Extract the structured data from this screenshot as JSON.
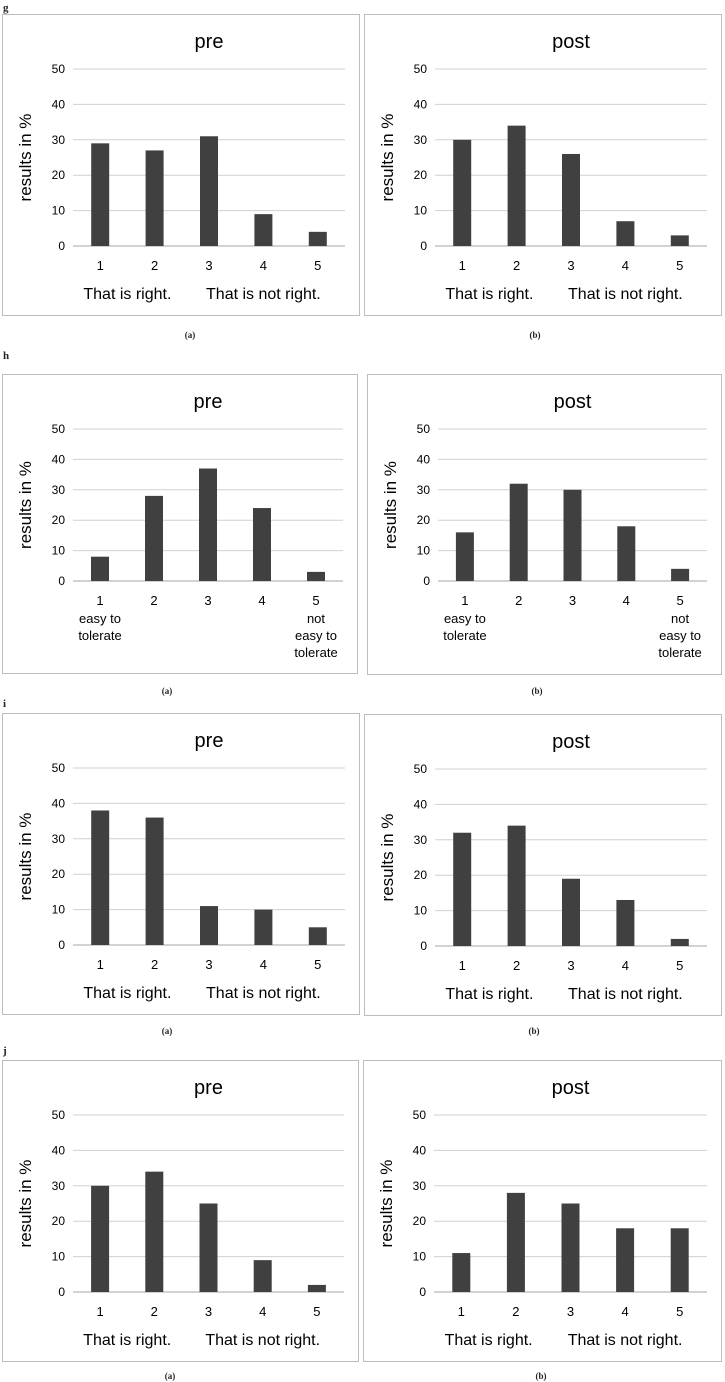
{
  "groups": [
    {
      "id": "g",
      "label": "g"
    },
    {
      "id": "h",
      "label": "h"
    },
    {
      "id": "i",
      "label": "i"
    },
    {
      "id": "j",
      "label": "j"
    }
  ],
  "sublabels": {
    "a": "(a)",
    "b": "(b)"
  },
  "chart_data": [
    {
      "group": "g",
      "panel": "a",
      "type": "bar",
      "title": "pre",
      "ylabel": "results in %",
      "ylim": [
        0,
        50
      ],
      "yticks": [
        0,
        10,
        20,
        30,
        40,
        50
      ],
      "categories": [
        "1",
        "2",
        "3",
        "4",
        "5"
      ],
      "values": [
        29,
        27,
        31,
        9,
        4
      ],
      "sublabels": [
        "That is right.",
        "That is not right."
      ],
      "grid": true
    },
    {
      "group": "g",
      "panel": "b",
      "type": "bar",
      "title": "post",
      "ylabel": "results in %",
      "ylim": [
        0,
        50
      ],
      "yticks": [
        0,
        10,
        20,
        30,
        40,
        50
      ],
      "categories": [
        "1",
        "2",
        "3",
        "4",
        "5"
      ],
      "values": [
        30,
        34,
        26,
        7,
        3
      ],
      "sublabels": [
        "That is right.",
        "That is not right."
      ],
      "grid": true
    },
    {
      "group": "h",
      "panel": "a",
      "type": "bar",
      "title": "pre",
      "ylabel": "results in %",
      "ylim": [
        0,
        50
      ],
      "yticks": [
        0,
        10,
        20,
        30,
        40,
        50
      ],
      "categories": [
        "1",
        "2",
        "3",
        "4",
        "5"
      ],
      "values": [
        8,
        28,
        37,
        24,
        3
      ],
      "cat_notes": {
        "1": [
          "easy to",
          "tolerate"
        ],
        "5": [
          "not",
          "easy to",
          "tolerate"
        ]
      },
      "grid": true
    },
    {
      "group": "h",
      "panel": "b",
      "type": "bar",
      "title": "post",
      "ylabel": "results in %",
      "ylim": [
        0,
        50
      ],
      "yticks": [
        0,
        10,
        20,
        30,
        40,
        50
      ],
      "categories": [
        "1",
        "2",
        "3",
        "4",
        "5"
      ],
      "values": [
        16,
        32,
        30,
        18,
        4
      ],
      "cat_notes": {
        "1": [
          "easy to",
          "tolerate"
        ],
        "5": [
          "not",
          "easy to",
          "tolerate"
        ]
      },
      "grid": true
    },
    {
      "group": "i",
      "panel": "a",
      "type": "bar",
      "title": "pre",
      "ylabel": "results in %",
      "ylim": [
        0,
        50
      ],
      "yticks": [
        0,
        10,
        20,
        30,
        40,
        50
      ],
      "categories": [
        "1",
        "2",
        "3",
        "4",
        "5"
      ],
      "values": [
        38,
        36,
        11,
        10,
        5
      ],
      "sublabels": [
        "That is right.",
        "That is not right."
      ],
      "grid": true
    },
    {
      "group": "i",
      "panel": "b",
      "type": "bar",
      "title": "post",
      "ylabel": "results in %",
      "ylim": [
        0,
        50
      ],
      "yticks": [
        0,
        10,
        20,
        30,
        40,
        50
      ],
      "categories": [
        "1",
        "2",
        "3",
        "4",
        "5"
      ],
      "values": [
        32,
        34,
        19,
        13,
        2
      ],
      "sublabels": [
        "That is right.",
        "That is not right."
      ],
      "grid": true
    },
    {
      "group": "j",
      "panel": "a",
      "type": "bar",
      "title": "pre",
      "ylabel": "results in %",
      "ylim": [
        0,
        50
      ],
      "yticks": [
        0,
        10,
        20,
        30,
        40,
        50
      ],
      "categories": [
        "1",
        "2",
        "3",
        "4",
        "5"
      ],
      "values": [
        30,
        34,
        25,
        9,
        2
      ],
      "sublabels": [
        "That is right.",
        "That is not right."
      ],
      "grid": true
    },
    {
      "group": "j",
      "panel": "b",
      "type": "bar",
      "title": "post",
      "ylabel": "results in %",
      "ylim": [
        0,
        50
      ],
      "yticks": [
        0,
        10,
        20,
        30,
        40,
        50
      ],
      "categories": [
        "1",
        "2",
        "3",
        "4",
        "5"
      ],
      "values": [
        11,
        28,
        25,
        18,
        18
      ],
      "sublabels": [
        "That is right.",
        "That is not right."
      ],
      "grid": true
    }
  ],
  "colors": {
    "bar": "#404040",
    "grid": "#d0d0d0",
    "axis": "#a6a6a6",
    "text": "#000000"
  }
}
